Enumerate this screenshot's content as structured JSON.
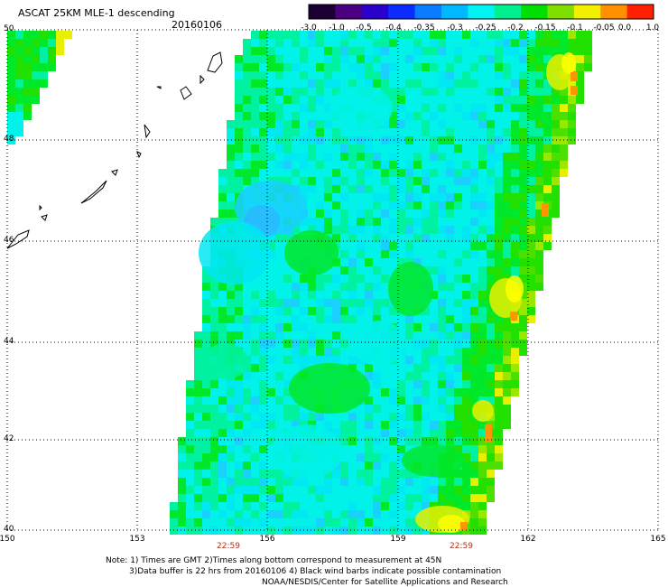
{
  "header": {
    "title": "ASCAT 25KM MLE-1 descending",
    "date": "20160106"
  },
  "colorbar": {
    "labels": [
      "-3.0",
      "-1.0",
      "-0.5",
      "-0.4",
      "-0.35",
      "-0.3",
      "-0.25",
      "-0.2",
      "-0.15",
      "-0.1",
      "-0.05",
      "0.0",
      "1.0"
    ],
    "colors": [
      "#1a0033",
      "#4b0082",
      "#2a00cc",
      "#0a2cff",
      "#0a7cff",
      "#00b8ff",
      "#00f2f2",
      "#00f090",
      "#00e000",
      "#7fe000",
      "#f2f000",
      "#ff9000",
      "#ff2000"
    ]
  },
  "map": {
    "lat_labels": [
      "50",
      "48",
      "46",
      "44",
      "42",
      "40"
    ],
    "lon_labels": [
      "150",
      "153",
      "156",
      "159",
      "162",
      "165"
    ],
    "time_labels": [
      "22:59",
      "22:59"
    ]
  },
  "notes": {
    "line1": "Note: 1) Times are GMT 2)Times along bottom correspond to measurement at 45N",
    "line2": "3)Data buffer is 22 hrs from 20160106 4) Black wind barbs indicate possible contamination",
    "line3": "NOAA/NESDIS/Center for Satellite Applications and Research"
  }
}
